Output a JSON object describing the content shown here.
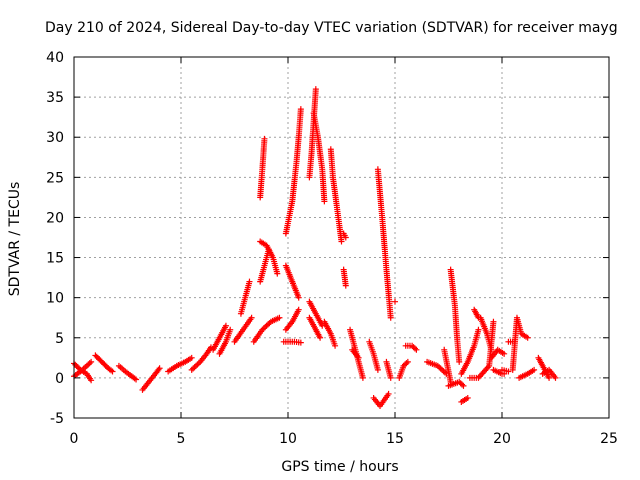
{
  "chart_data": {
    "type": "scatter",
    "title": "Day 210 of 2024, Sidereal Day-to-day VTEC variation (SDTVAR) for receiver mayg",
    "xlabel": "GPS time / hours",
    "ylabel": "SDTVAR / TECUs",
    "xlim": [
      0,
      25
    ],
    "ylim": [
      -5,
      40
    ],
    "xticks": [
      "0",
      "5",
      "10",
      "15",
      "20",
      "25"
    ],
    "yticks": [
      "-5",
      "0",
      "5",
      "10",
      "15",
      "20",
      "25",
      "30",
      "35",
      "40"
    ],
    "grid": true,
    "marker": "+",
    "colors": {
      "marker": "#ff0000",
      "grid": "#a0a0a0",
      "axis": "#000000"
    },
    "tracks": [
      [
        [
          0.0,
          1.8
        ],
        [
          0.3,
          1.0
        ],
        [
          0.6,
          0.5
        ],
        [
          0.8,
          -0.3
        ]
      ],
      [
        [
          0.0,
          0.2
        ],
        [
          0.3,
          0.8
        ],
        [
          0.6,
          1.5
        ],
        [
          0.8,
          2.0
        ]
      ],
      [
        [
          1.0,
          2.8
        ],
        [
          1.3,
          2.0
        ],
        [
          1.6,
          1.2
        ],
        [
          1.8,
          0.8
        ]
      ],
      [
        [
          2.1,
          1.5
        ],
        [
          2.4,
          0.8
        ],
        [
          2.7,
          0.2
        ],
        [
          2.9,
          -0.2
        ]
      ],
      [
        [
          3.2,
          -1.5
        ],
        [
          3.5,
          -0.5
        ],
        [
          3.8,
          0.5
        ],
        [
          4.0,
          1.2
        ]
      ],
      [
        [
          4.4,
          0.8
        ],
        [
          4.8,
          1.5
        ],
        [
          5.2,
          2.0
        ],
        [
          5.5,
          2.5
        ]
      ],
      [
        [
          5.5,
          1.0
        ],
        [
          5.9,
          2.0
        ],
        [
          6.2,
          3.0
        ],
        [
          6.4,
          3.8
        ]
      ],
      [
        [
          6.5,
          3.5
        ],
        [
          6.8,
          5.0
        ],
        [
          7.1,
          6.5
        ]
      ],
      [
        [
          6.8,
          3.0
        ],
        [
          7.1,
          4.5
        ],
        [
          7.3,
          6.0
        ]
      ],
      [
        [
          7.5,
          4.5
        ],
        [
          7.9,
          6.0
        ],
        [
          8.3,
          7.5
        ]
      ],
      [
        [
          7.8,
          8.0
        ],
        [
          8.0,
          10.0
        ],
        [
          8.2,
          12.0
        ]
      ],
      [
        [
          8.4,
          4.5
        ],
        [
          8.8,
          6.0
        ],
        [
          9.2,
          7.0
        ],
        [
          9.6,
          7.5
        ]
      ],
      [
        [
          8.7,
          12.0
        ],
        [
          8.9,
          14.0
        ],
        [
          9.1,
          16.0
        ]
      ],
      [
        [
          8.7,
          17.0
        ],
        [
          9.0,
          16.5
        ],
        [
          9.3,
          15.0
        ],
        [
          9.5,
          13.0
        ]
      ],
      [
        [
          8.7,
          22.5
        ],
        [
          8.8,
          26.0
        ],
        [
          8.9,
          29.8
        ]
      ],
      [
        [
          9.8,
          4.5
        ],
        [
          10.3,
          4.5
        ],
        [
          10.6,
          4.4
        ]
      ],
      [
        [
          9.9,
          6.0
        ],
        [
          10.2,
          7.0
        ],
        [
          10.5,
          8.5
        ]
      ],
      [
        [
          9.9,
          14.0
        ],
        [
          10.2,
          12.0
        ],
        [
          10.5,
          10.0
        ]
      ],
      [
        [
          9.9,
          18.0
        ],
        [
          10.2,
          22.0
        ],
        [
          10.4,
          27.0
        ],
        [
          10.5,
          30.0
        ],
        [
          10.6,
          33.5
        ]
      ],
      [
        [
          11.0,
          25.0
        ],
        [
          11.1,
          28.0
        ],
        [
          11.2,
          32.0
        ],
        [
          11.3,
          36.0
        ]
      ],
      [
        [
          11.2,
          33.0
        ],
        [
          11.4,
          30.0
        ],
        [
          11.6,
          26.0
        ],
        [
          11.7,
          22.0
        ]
      ],
      [
        [
          11.0,
          9.5
        ],
        [
          11.3,
          8.0
        ],
        [
          11.6,
          6.5
        ]
      ],
      [
        [
          11.0,
          7.5
        ],
        [
          11.3,
          6.0
        ],
        [
          11.5,
          5.0
        ]
      ],
      [
        [
          11.7,
          7.0
        ],
        [
          12.0,
          5.5
        ],
        [
          12.2,
          4.0
        ]
      ],
      [
        [
          12.0,
          28.5
        ],
        [
          12.1,
          25.0
        ],
        [
          12.3,
          21.0
        ],
        [
          12.5,
          17.0
        ]
      ],
      [
        [
          12.6,
          18.0
        ],
        [
          12.7,
          17.5
        ]
      ],
      [
        [
          12.6,
          13.5
        ],
        [
          12.7,
          11.5
        ]
      ],
      [
        [
          12.9,
          6.0
        ],
        [
          13.2,
          3.0
        ],
        [
          13.5,
          0.0
        ]
      ],
      [
        [
          13.0,
          3.5
        ],
        [
          13.3,
          2.5
        ]
      ],
      [
        [
          13.8,
          4.5
        ],
        [
          14.0,
          3.0
        ],
        [
          14.2,
          1.0
        ]
      ],
      [
        [
          14.0,
          -2.5
        ],
        [
          14.3,
          -3.5
        ],
        [
          14.7,
          -2.0
        ]
      ],
      [
        [
          14.2,
          26.0
        ],
        [
          14.4,
          20.0
        ],
        [
          14.6,
          13.5
        ],
        [
          14.8,
          7.5
        ]
      ],
      [
        [
          14.6,
          2.0
        ],
        [
          14.8,
          0.0
        ]
      ],
      [
        [
          15.0,
          9.5
        ]
      ],
      [
        [
          15.2,
          0.0
        ],
        [
          15.4,
          1.5
        ],
        [
          15.6,
          2.0
        ]
      ],
      [
        [
          15.5,
          4.0
        ],
        [
          15.8,
          4.0
        ],
        [
          16.0,
          3.5
        ]
      ],
      [
        [
          16.5,
          2.0
        ],
        [
          17.0,
          1.5
        ],
        [
          17.4,
          0.5
        ]
      ],
      [
        [
          17.3,
          3.5
        ],
        [
          17.6,
          -0.5
        ]
      ],
      [
        [
          17.6,
          13.5
        ],
        [
          17.8,
          9.0
        ],
        [
          17.9,
          5.0
        ],
        [
          18.0,
          2.0
        ]
      ],
      [
        [
          17.5,
          -1.0
        ],
        [
          18.0,
          -0.5
        ],
        [
          18.2,
          -1.0
        ]
      ],
      [
        [
          18.1,
          0.5
        ],
        [
          18.4,
          2.0
        ],
        [
          18.7,
          4.0
        ],
        [
          18.9,
          6.0
        ]
      ],
      [
        [
          18.7,
          8.5
        ],
        [
          18.9,
          7.5
        ]
      ],
      [
        [
          18.1,
          -3.0
        ],
        [
          18.4,
          -2.5
        ]
      ],
      [
        [
          18.5,
          0.0
        ],
        [
          18.9,
          0.0
        ],
        [
          19.4,
          1.5
        ],
        [
          19.6,
          7.0
        ]
      ],
      [
        [
          19.0,
          7.5
        ],
        [
          19.3,
          5.5
        ],
        [
          19.5,
          3.5
        ]
      ],
      [
        [
          19.5,
          2.5
        ],
        [
          19.8,
          3.5
        ],
        [
          20.1,
          3.0
        ]
      ],
      [
        [
          19.6,
          1.0
        ],
        [
          20.0,
          0.5
        ],
        [
          20.1,
          0.5
        ]
      ],
      [
        [
          20.3,
          4.5
        ],
        [
          20.6,
          4.5
        ]
      ],
      [
        [
          20.0,
          1.0
        ],
        [
          20.3,
          0.8
        ]
      ],
      [
        [
          20.5,
          1.0
        ],
        [
          20.7,
          7.5
        ],
        [
          20.9,
          5.5
        ],
        [
          21.2,
          5.0
        ]
      ],
      [
        [
          20.8,
          0.0
        ],
        [
          21.2,
          0.5
        ],
        [
          21.5,
          1.0
        ]
      ],
      [
        [
          21.7,
          2.5
        ],
        [
          21.9,
          1.5
        ],
        [
          22.2,
          0.0
        ]
      ],
      [
        [
          21.9,
          0.5
        ],
        [
          22.2,
          1.0
        ],
        [
          22.5,
          0.0
        ]
      ]
    ]
  }
}
